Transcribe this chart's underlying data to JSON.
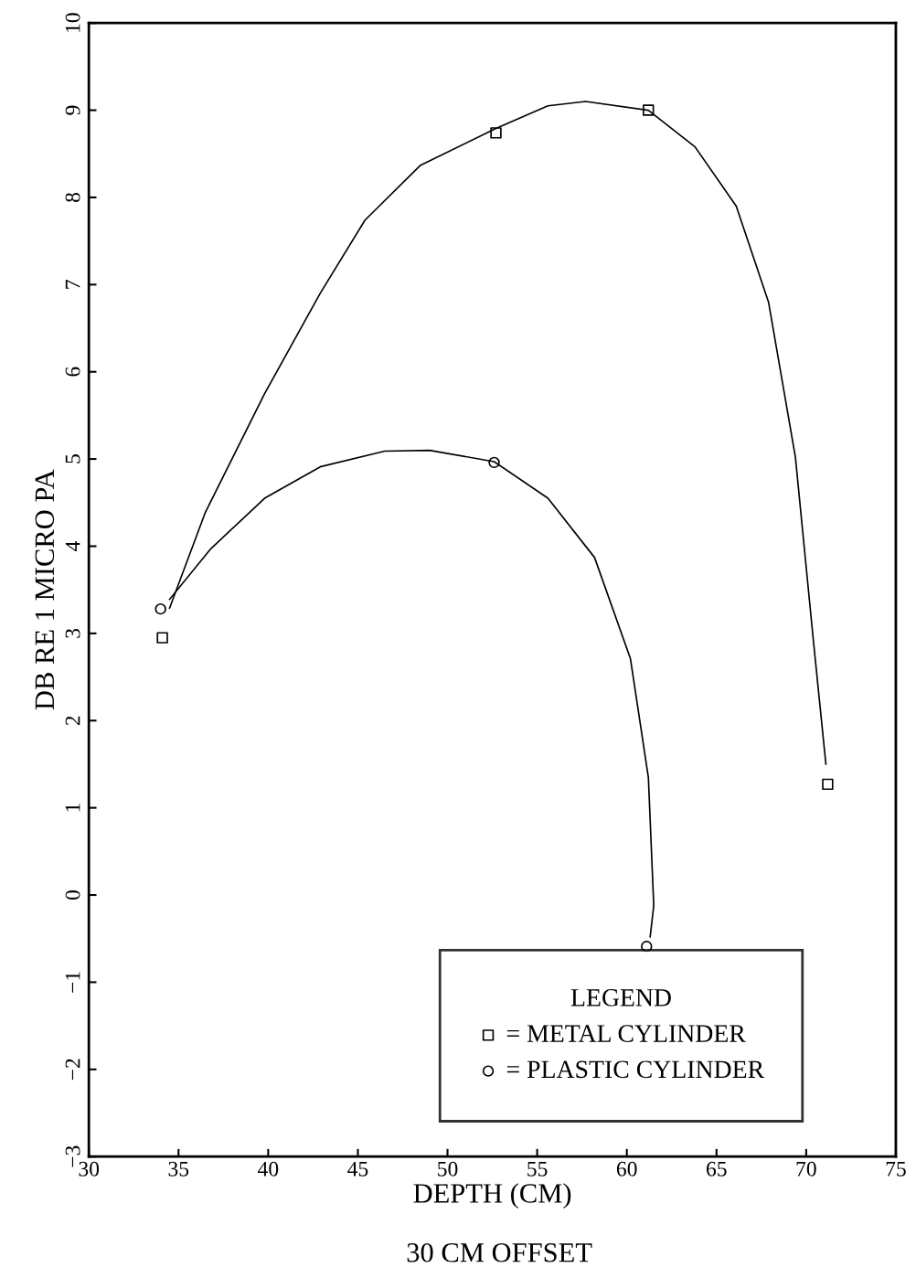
{
  "chart_data": {
    "type": "scatter",
    "xlabel": "DEPTH (CM)",
    "ylabel": "DB RE 1 MICRO PA",
    "annotations": [
      "30 CM OFFSET"
    ],
    "legend_title": "LEGEND",
    "legend": "bottom right",
    "grid": false,
    "xlim": [
      30,
      75
    ],
    "xticks": [
      30,
      35,
      40,
      45,
      50,
      55,
      60,
      65,
      70,
      75
    ],
    "ylim": [
      -3,
      10
    ],
    "yticks": [
      {
        "value": -3,
        "label": "−3"
      },
      {
        "value": -2,
        "label": "−2"
      },
      {
        "value": -1,
        "label": "−1"
      },
      0,
      1,
      2,
      3,
      4,
      5,
      6,
      7,
      8,
      9,
      10
    ],
    "series": [
      {
        "name": "= METAL CYLINDER",
        "color": "#000000",
        "marker": "square",
        "x": [
          34.1,
          52.7,
          61.2,
          71.2
        ],
        "values": [
          2.95,
          8.74,
          9.0,
          1.27
        ]
      },
      {
        "name": "= PLASTIC CYLINDER",
        "color": "#000000",
        "marker": "circle",
        "x": [
          34.0,
          52.6,
          61.1
        ],
        "values": [
          3.28,
          4.96,
          -0.59
        ]
      },
      {
        "type": "line",
        "color": "#000000",
        "line_style": "solid",
        "marker": "none",
        "x": [
          34.5,
          36.5,
          39.8,
          42.9,
          45.4,
          48.5,
          52.7,
          55.6,
          57.7,
          61.2,
          63.8,
          66.1,
          67.9,
          69.4,
          70.4,
          71.1
        ],
        "values": [
          3.29,
          4.39,
          5.75,
          6.9,
          7.74,
          8.37,
          8.79,
          9.05,
          9.1,
          9.0,
          8.58,
          7.9,
          6.8,
          5.02,
          2.92,
          1.5
        ]
      },
      {
        "type": "line",
        "color": "#000000",
        "line_style": "solid",
        "marker": "none",
        "x": [
          34.5,
          36.8,
          39.8,
          42.9,
          46.5,
          49.0,
          52.6,
          55.6,
          58.2,
          60.2,
          61.2,
          61.5,
          61.3
        ],
        "values": [
          3.39,
          3.97,
          4.55,
          4.91,
          5.09,
          5.1,
          4.97,
          4.55,
          3.87,
          2.71,
          1.35,
          -0.12,
          -0.48
        ]
      }
    ]
  }
}
